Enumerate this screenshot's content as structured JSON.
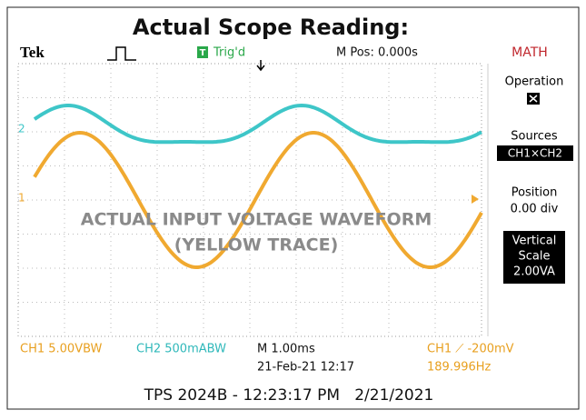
{
  "title": "Actual Scope Reading:",
  "header": {
    "brand": "Tek",
    "trigger_icon": "T",
    "trigger_status": "Trig'd",
    "position": "M Pos: 0.000s",
    "menu_title": "MATH"
  },
  "menu": {
    "operation_label": "Operation",
    "sources_label": "Sources",
    "sources_value": "CH1×CH2",
    "position_label": "Position",
    "position_value": "0.00 div",
    "vertical_scale": [
      "Vertical",
      "Scale",
      "2.00VA"
    ]
  },
  "markers": {
    "ch2": "2",
    "ch1": "1"
  },
  "annotation": [
    "ACTUAL INPUT VOLTAGE WAVEFORM",
    "(YELLOW TRACE)"
  ],
  "status": {
    "ch1_scale": "CH1  5.00VBW",
    "ch2_scale": "CH2  500mABW",
    "timebase": "M 1.00ms",
    "date": "21-Feb-21 12:17",
    "trigger": "CH1 ⟋ -200mV",
    "frequency": "189.996Hz"
  },
  "caption": "TPS 2024B - 12:23:17 PM   2/21/2021"
}
